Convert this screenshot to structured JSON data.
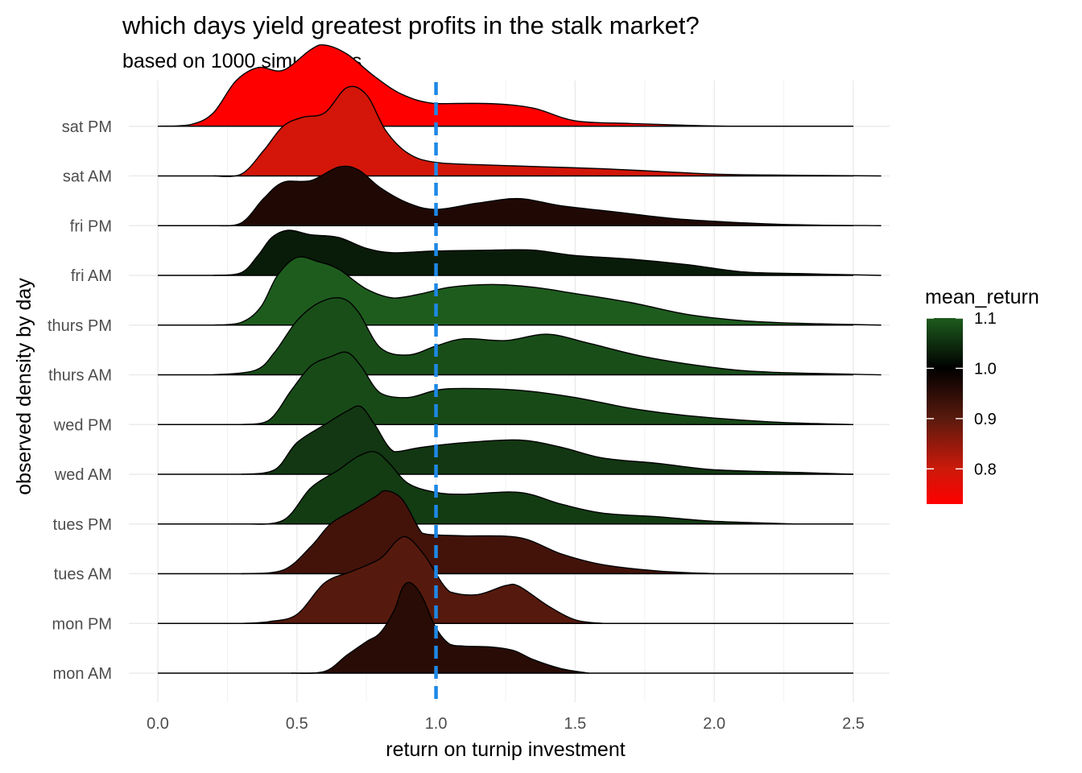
{
  "chart_data": {
    "type": "ridgeline",
    "title": "which days yield greatest profits in the stalk market?",
    "subtitle": "based on 1000 simulations",
    "xlabel": "return on turnip investment",
    "ylabel": "observed density by day",
    "xlim": [
      -0.1,
      2.6
    ],
    "x_ticks": [
      0.0,
      0.5,
      1.0,
      1.5,
      2.0,
      2.5
    ],
    "x_tick_labels": [
      "0.0",
      "0.5",
      "1.0",
      "1.5",
      "2.0",
      "2.5"
    ],
    "reference_line": {
      "x": 1.0,
      "style": "dashed",
      "color": "#1e88e5"
    },
    "grid": true,
    "legend": {
      "title": "mean_return",
      "placement": "right",
      "range": [
        0.73,
        1.1
      ],
      "ticks": [
        0.8,
        0.9,
        1.0,
        1.1
      ],
      "tick_labels": [
        "0.8",
        "0.9",
        "1.0",
        "1.1"
      ],
      "stops": [
        {
          "value": 0.73,
          "color": "#ff0000"
        },
        {
          "value": 0.8,
          "color": "#cc1a0a"
        },
        {
          "value": 0.9,
          "color": "#5a1a0e"
        },
        {
          "value": 1.0,
          "color": "#000000"
        },
        {
          "value": 1.1,
          "color": "#1e5c1e"
        }
      ]
    },
    "series": [
      {
        "name": "mon AM",
        "mean_return": 0.955,
        "x_range": [
          0.48,
          1.55
        ],
        "density": [
          [
            0.48,
            0
          ],
          [
            0.6,
            0.02
          ],
          [
            0.68,
            0.2
          ],
          [
            0.75,
            0.35
          ],
          [
            0.8,
            0.45
          ],
          [
            0.85,
            0.7
          ],
          [
            0.88,
            0.95
          ],
          [
            0.91,
            1.0
          ],
          [
            0.95,
            0.85
          ],
          [
            1.0,
            0.5
          ],
          [
            1.05,
            0.32
          ],
          [
            1.1,
            0.3
          ],
          [
            1.2,
            0.29
          ],
          [
            1.28,
            0.25
          ],
          [
            1.35,
            0.15
          ],
          [
            1.45,
            0.05
          ],
          [
            1.55,
            0
          ]
        ]
      },
      {
        "name": "mon PM",
        "mean_return": 0.905,
        "x_range": [
          0.3,
          1.6
        ],
        "density": [
          [
            0.3,
            0
          ],
          [
            0.4,
            0.02
          ],
          [
            0.5,
            0.1
          ],
          [
            0.6,
            0.45
          ],
          [
            0.7,
            0.58
          ],
          [
            0.8,
            0.72
          ],
          [
            0.86,
            0.92
          ],
          [
            0.9,
            0.95
          ],
          [
            0.96,
            0.75
          ],
          [
            1.05,
            0.35
          ],
          [
            1.15,
            0.32
          ],
          [
            1.25,
            0.42
          ],
          [
            1.3,
            0.41
          ],
          [
            1.4,
            0.2
          ],
          [
            1.5,
            0.04
          ],
          [
            1.6,
            0
          ]
        ]
      },
      {
        "name": "tues AM",
        "mean_return": 0.925,
        "x_range": [
          0.3,
          2.0
        ],
        "density": [
          [
            0.3,
            0
          ],
          [
            0.45,
            0.04
          ],
          [
            0.55,
            0.3
          ],
          [
            0.62,
            0.55
          ],
          [
            0.7,
            0.7
          ],
          [
            0.78,
            0.85
          ],
          [
            0.82,
            0.92
          ],
          [
            0.88,
            0.82
          ],
          [
            0.95,
            0.45
          ],
          [
            1.0,
            0.43
          ],
          [
            1.1,
            0.42
          ],
          [
            1.3,
            0.4
          ],
          [
            1.45,
            0.22
          ],
          [
            1.6,
            0.1
          ],
          [
            1.8,
            0.03
          ],
          [
            2.0,
            0
          ]
        ]
      },
      {
        "name": "tues PM",
        "mean_return": 1.065,
        "x_range": [
          0.3,
          2.3
        ],
        "density": [
          [
            0.3,
            0
          ],
          [
            0.45,
            0.04
          ],
          [
            0.55,
            0.4
          ],
          [
            0.65,
            0.6
          ],
          [
            0.72,
            0.75
          ],
          [
            0.78,
            0.8
          ],
          [
            0.83,
            0.68
          ],
          [
            0.9,
            0.45
          ],
          [
            1.0,
            0.35
          ],
          [
            1.1,
            0.33
          ],
          [
            1.3,
            0.35
          ],
          [
            1.45,
            0.22
          ],
          [
            1.6,
            0.12
          ],
          [
            1.8,
            0.08
          ],
          [
            2.0,
            0.03
          ],
          [
            2.3,
            0
          ]
        ]
      },
      {
        "name": "wed AM",
        "mean_return": 1.06,
        "x_range": [
          0.3,
          2.5
        ],
        "density": [
          [
            0.3,
            0
          ],
          [
            0.42,
            0.05
          ],
          [
            0.5,
            0.35
          ],
          [
            0.6,
            0.55
          ],
          [
            0.68,
            0.7
          ],
          [
            0.73,
            0.75
          ],
          [
            0.78,
            0.55
          ],
          [
            0.85,
            0.25
          ],
          [
            0.95,
            0.3
          ],
          [
            1.1,
            0.35
          ],
          [
            1.3,
            0.38
          ],
          [
            1.45,
            0.3
          ],
          [
            1.6,
            0.18
          ],
          [
            1.8,
            0.12
          ],
          [
            2.0,
            0.05
          ],
          [
            2.3,
            0.02
          ],
          [
            2.5,
            0
          ]
        ]
      },
      {
        "name": "wed PM",
        "mean_return": 1.08,
        "x_range": [
          0.3,
          2.5
        ],
        "density": [
          [
            0.3,
            0
          ],
          [
            0.4,
            0.05
          ],
          [
            0.48,
            0.38
          ],
          [
            0.55,
            0.65
          ],
          [
            0.62,
            0.75
          ],
          [
            0.68,
            0.8
          ],
          [
            0.73,
            0.65
          ],
          [
            0.8,
            0.35
          ],
          [
            0.9,
            0.3
          ],
          [
            1.0,
            0.38
          ],
          [
            1.1,
            0.4
          ],
          [
            1.3,
            0.38
          ],
          [
            1.5,
            0.3
          ],
          [
            1.7,
            0.18
          ],
          [
            1.9,
            0.1
          ],
          [
            2.2,
            0.03
          ],
          [
            2.5,
            0
          ]
        ]
      },
      {
        "name": "thurs AM",
        "mean_return": 1.085,
        "x_range": [
          0.2,
          2.6
        ],
        "density": [
          [
            0.2,
            0
          ],
          [
            0.35,
            0.05
          ],
          [
            0.42,
            0.25
          ],
          [
            0.5,
            0.6
          ],
          [
            0.58,
            0.8
          ],
          [
            0.66,
            0.85
          ],
          [
            0.72,
            0.7
          ],
          [
            0.8,
            0.3
          ],
          [
            0.9,
            0.22
          ],
          [
            1.0,
            0.32
          ],
          [
            1.1,
            0.4
          ],
          [
            1.25,
            0.38
          ],
          [
            1.4,
            0.45
          ],
          [
            1.55,
            0.35
          ],
          [
            1.75,
            0.2
          ],
          [
            2.0,
            0.08
          ],
          [
            2.2,
            0.03
          ],
          [
            2.6,
            0
          ]
        ]
      },
      {
        "name": "thurs PM",
        "mean_return": 1.1,
        "x_range": [
          0.2,
          2.6
        ],
        "density": [
          [
            0.2,
            0
          ],
          [
            0.3,
            0.03
          ],
          [
            0.37,
            0.2
          ],
          [
            0.43,
            0.55
          ],
          [
            0.5,
            0.75
          ],
          [
            0.58,
            0.7
          ],
          [
            0.65,
            0.62
          ],
          [
            0.75,
            0.4
          ],
          [
            0.85,
            0.3
          ],
          [
            0.95,
            0.35
          ],
          [
            1.05,
            0.42
          ],
          [
            1.2,
            0.45
          ],
          [
            1.35,
            0.42
          ],
          [
            1.5,
            0.35
          ],
          [
            1.7,
            0.25
          ],
          [
            1.9,
            0.12
          ],
          [
            2.1,
            0.05
          ],
          [
            2.3,
            0.02
          ],
          [
            2.6,
            0
          ]
        ]
      },
      {
        "name": "fri AM",
        "mean_return": 1.03,
        "x_range": [
          0.2,
          2.6
        ],
        "density": [
          [
            0.2,
            0
          ],
          [
            0.3,
            0.03
          ],
          [
            0.36,
            0.22
          ],
          [
            0.41,
            0.42
          ],
          [
            0.47,
            0.5
          ],
          [
            0.55,
            0.45
          ],
          [
            0.65,
            0.42
          ],
          [
            0.75,
            0.3
          ],
          [
            0.85,
            0.25
          ],
          [
            1.0,
            0.27
          ],
          [
            1.2,
            0.28
          ],
          [
            1.35,
            0.28
          ],
          [
            1.5,
            0.22
          ],
          [
            1.7,
            0.18
          ],
          [
            1.9,
            0.12
          ],
          [
            2.1,
            0.04
          ],
          [
            2.3,
            0.02
          ],
          [
            2.6,
            0
          ]
        ]
      },
      {
        "name": "fri PM",
        "mean_return": 0.965,
        "x_range": [
          0.2,
          2.6
        ],
        "density": [
          [
            0.2,
            0
          ],
          [
            0.3,
            0.03
          ],
          [
            0.38,
            0.3
          ],
          [
            0.45,
            0.48
          ],
          [
            0.55,
            0.5
          ],
          [
            0.65,
            0.65
          ],
          [
            0.72,
            0.62
          ],
          [
            0.8,
            0.42
          ],
          [
            0.9,
            0.25
          ],
          [
            1.0,
            0.18
          ],
          [
            1.15,
            0.25
          ],
          [
            1.3,
            0.3
          ],
          [
            1.45,
            0.22
          ],
          [
            1.65,
            0.15
          ],
          [
            1.85,
            0.08
          ],
          [
            2.05,
            0.04
          ],
          [
            2.3,
            0.01
          ],
          [
            2.6,
            0
          ]
        ]
      },
      {
        "name": "sat AM",
        "mean_return": 0.79,
        "x_range": [
          0.2,
          2.6
        ],
        "density": [
          [
            0.2,
            0
          ],
          [
            0.3,
            0.02
          ],
          [
            0.38,
            0.28
          ],
          [
            0.45,
            0.55
          ],
          [
            0.52,
            0.65
          ],
          [
            0.6,
            0.7
          ],
          [
            0.68,
            0.98
          ],
          [
            0.75,
            0.9
          ],
          [
            0.82,
            0.5
          ],
          [
            0.9,
            0.25
          ],
          [
            1.0,
            0.15
          ],
          [
            1.2,
            0.12
          ],
          [
            1.4,
            0.1
          ],
          [
            1.6,
            0.08
          ],
          [
            1.8,
            0.05
          ],
          [
            2.0,
            0.02
          ],
          [
            2.2,
            0.01
          ],
          [
            2.6,
            0
          ]
        ]
      },
      {
        "name": "sat PM",
        "mean_return": 0.73,
        "x_range": [
          0.0,
          2.5
        ],
        "density": [
          [
            0.0,
            0
          ],
          [
            0.12,
            0.02
          ],
          [
            0.2,
            0.15
          ],
          [
            0.28,
            0.5
          ],
          [
            0.36,
            0.65
          ],
          [
            0.45,
            0.62
          ],
          [
            0.55,
            0.85
          ],
          [
            0.6,
            0.9
          ],
          [
            0.68,
            0.8
          ],
          [
            0.78,
            0.55
          ],
          [
            0.88,
            0.35
          ],
          [
            1.0,
            0.25
          ],
          [
            1.2,
            0.25
          ],
          [
            1.35,
            0.2
          ],
          [
            1.5,
            0.06
          ],
          [
            1.7,
            0.03
          ],
          [
            1.9,
            0.01
          ],
          [
            2.1,
            0
          ],
          [
            2.5,
            0
          ]
        ]
      }
    ]
  }
}
